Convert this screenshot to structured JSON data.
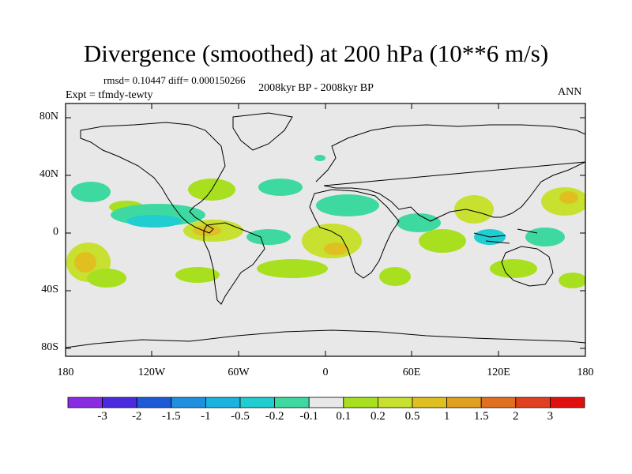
{
  "title": "Divergence (smoothed) at 200 hPa (10**6 m/s)",
  "stats": "rmsd= 0.10447 diff= 0.000150266",
  "experiment": "Expt = tfmdy-tewty",
  "period": "2008kyr BP - 2008kyr BP",
  "season": "ANN",
  "y_ticks": [
    "80N",
    "40N",
    "0",
    "40S",
    "80S"
  ],
  "x_ticks": [
    "180",
    "120W",
    "60W",
    "0",
    "60E",
    "120E",
    "180"
  ],
  "colorbar": {
    "colors": [
      "#8a2be2",
      "#4b2ae0",
      "#1e5ad8",
      "#1f8fe0",
      "#1ab3e0",
      "#20cdd0",
      "#3ed9a0",
      "#e8e8e8",
      "#a8e020",
      "#c8e030",
      "#e0c020",
      "#e0a020",
      "#e07020",
      "#e04020",
      "#e01010"
    ],
    "labels": [
      "-3",
      "-2",
      "-1.5",
      "-1",
      "-0.5",
      "-0.2",
      "-0.1",
      "0.1",
      "0.2",
      "0.5",
      "1",
      "1.5",
      "2",
      "3"
    ]
  },
  "field_colors": {
    "background": "#e8e8e8",
    "green": "#a8e020",
    "olive": "#c8e030",
    "orange": "#e0c020",
    "teal": "#3ed9a0",
    "cyan": "#20cdd0"
  }
}
